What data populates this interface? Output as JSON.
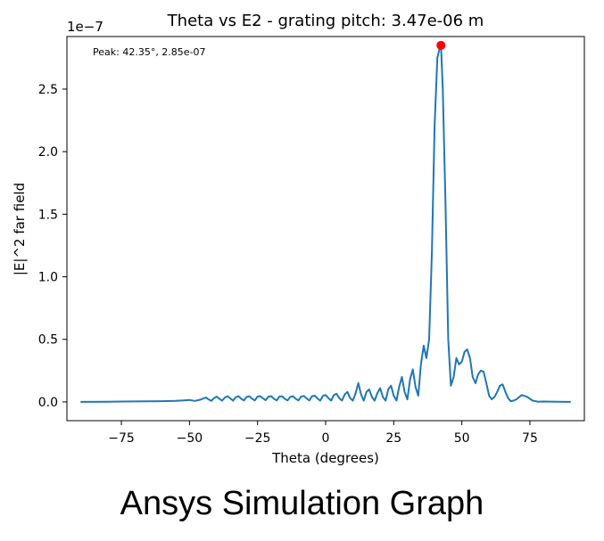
{
  "caption": "Ansys Simulation Graph",
  "chart_data": {
    "type": "line",
    "title": "Theta vs E2 - grating pitch: 3.47e-06 m",
    "xlabel": "Theta (degrees)",
    "ylabel": "|E|^2 far field",
    "y_offset_label": "1e−7",
    "xlim": [
      -95,
      95
    ],
    "ylim": [
      -0.15,
      2.92
    ],
    "x_ticks": [
      -75,
      -50,
      -25,
      0,
      25,
      50,
      75
    ],
    "x_tick_labels": [
      "−75",
      "−50",
      "−25",
      "0",
      "25",
      "50",
      "75"
    ],
    "y_ticks": [
      0.0,
      0.5,
      1.0,
      1.5,
      2.0,
      2.5
    ],
    "y_tick_labels": [
      "0.0",
      "0.5",
      "1.0",
      "1.5",
      "2.0",
      "2.5"
    ],
    "grid": false,
    "line_color": "#1f77b4",
    "marker_color": "#ff0000",
    "annotation": "Peak: 42.35°, 2.85e-07",
    "peak": {
      "x": 42.35,
      "y": 2.85
    },
    "series": [
      {
        "x": [
          -90,
          -80,
          -70,
          -60,
          -55,
          -52,
          -50,
          -48,
          -46,
          -44,
          -43,
          -42,
          -41,
          -40,
          -39,
          -38,
          -37,
          -36,
          -35,
          -34,
          -33,
          -32,
          -31,
          -30,
          -29,
          -28,
          -27,
          -26,
          -25,
          -24,
          -23,
          -22,
          -21,
          -20,
          -19,
          -18,
          -17,
          -16,
          -15,
          -14,
          -13,
          -12,
          -11,
          -10,
          -9,
          -8,
          -7,
          -6,
          -5,
          -4,
          -3,
          -2,
          -1,
          0,
          1,
          2,
          3,
          4,
          5,
          6,
          7,
          8,
          9,
          10,
          11,
          12,
          13,
          14,
          15,
          16,
          17,
          18,
          19,
          20,
          21,
          22,
          23,
          24,
          25,
          26,
          27,
          28,
          29,
          30,
          31,
          32,
          33,
          34,
          35,
          36,
          37,
          38,
          39,
          40,
          41,
          42,
          42.35,
          43,
          44,
          45,
          46,
          47,
          48,
          49,
          50,
          51,
          52,
          53,
          54,
          55,
          56,
          57,
          58,
          59,
          60,
          61,
          62,
          63,
          64,
          65,
          66,
          67,
          68,
          69,
          70,
          72,
          74,
          76,
          78,
          80,
          85,
          90
        ],
        "y": [
          0.0,
          0.002,
          0.004,
          0.006,
          0.008,
          0.012,
          0.015,
          0.008,
          0.018,
          0.035,
          0.02,
          0.008,
          0.03,
          0.042,
          0.025,
          0.01,
          0.035,
          0.045,
          0.028,
          0.01,
          0.038,
          0.045,
          0.025,
          0.012,
          0.04,
          0.045,
          0.025,
          0.012,
          0.042,
          0.046,
          0.028,
          0.014,
          0.042,
          0.046,
          0.025,
          0.012,
          0.042,
          0.045,
          0.025,
          0.012,
          0.04,
          0.045,
          0.025,
          0.012,
          0.042,
          0.047,
          0.028,
          0.012,
          0.045,
          0.05,
          0.028,
          0.01,
          0.048,
          0.055,
          0.03,
          0.01,
          0.055,
          0.065,
          0.03,
          0.01,
          0.06,
          0.08,
          0.03,
          0.01,
          0.07,
          0.15,
          0.06,
          0.01,
          0.08,
          0.1,
          0.04,
          0.01,
          0.07,
          0.11,
          0.04,
          0.01,
          0.1,
          0.13,
          0.05,
          0.01,
          0.12,
          0.2,
          0.08,
          0.02,
          0.18,
          0.26,
          0.12,
          0.05,
          0.3,
          0.45,
          0.35,
          0.5,
          1.2,
          2.2,
          2.75,
          2.84,
          2.85,
          2.5,
          1.6,
          0.5,
          0.13,
          0.2,
          0.35,
          0.3,
          0.32,
          0.4,
          0.42,
          0.35,
          0.2,
          0.15,
          0.22,
          0.25,
          0.24,
          0.15,
          0.05,
          0.02,
          0.04,
          0.08,
          0.13,
          0.14,
          0.08,
          0.03,
          0.005,
          0.01,
          0.02,
          0.055,
          0.04,
          0.01,
          0.002,
          0.003,
          0.002,
          0.0
        ]
      }
    ]
  }
}
